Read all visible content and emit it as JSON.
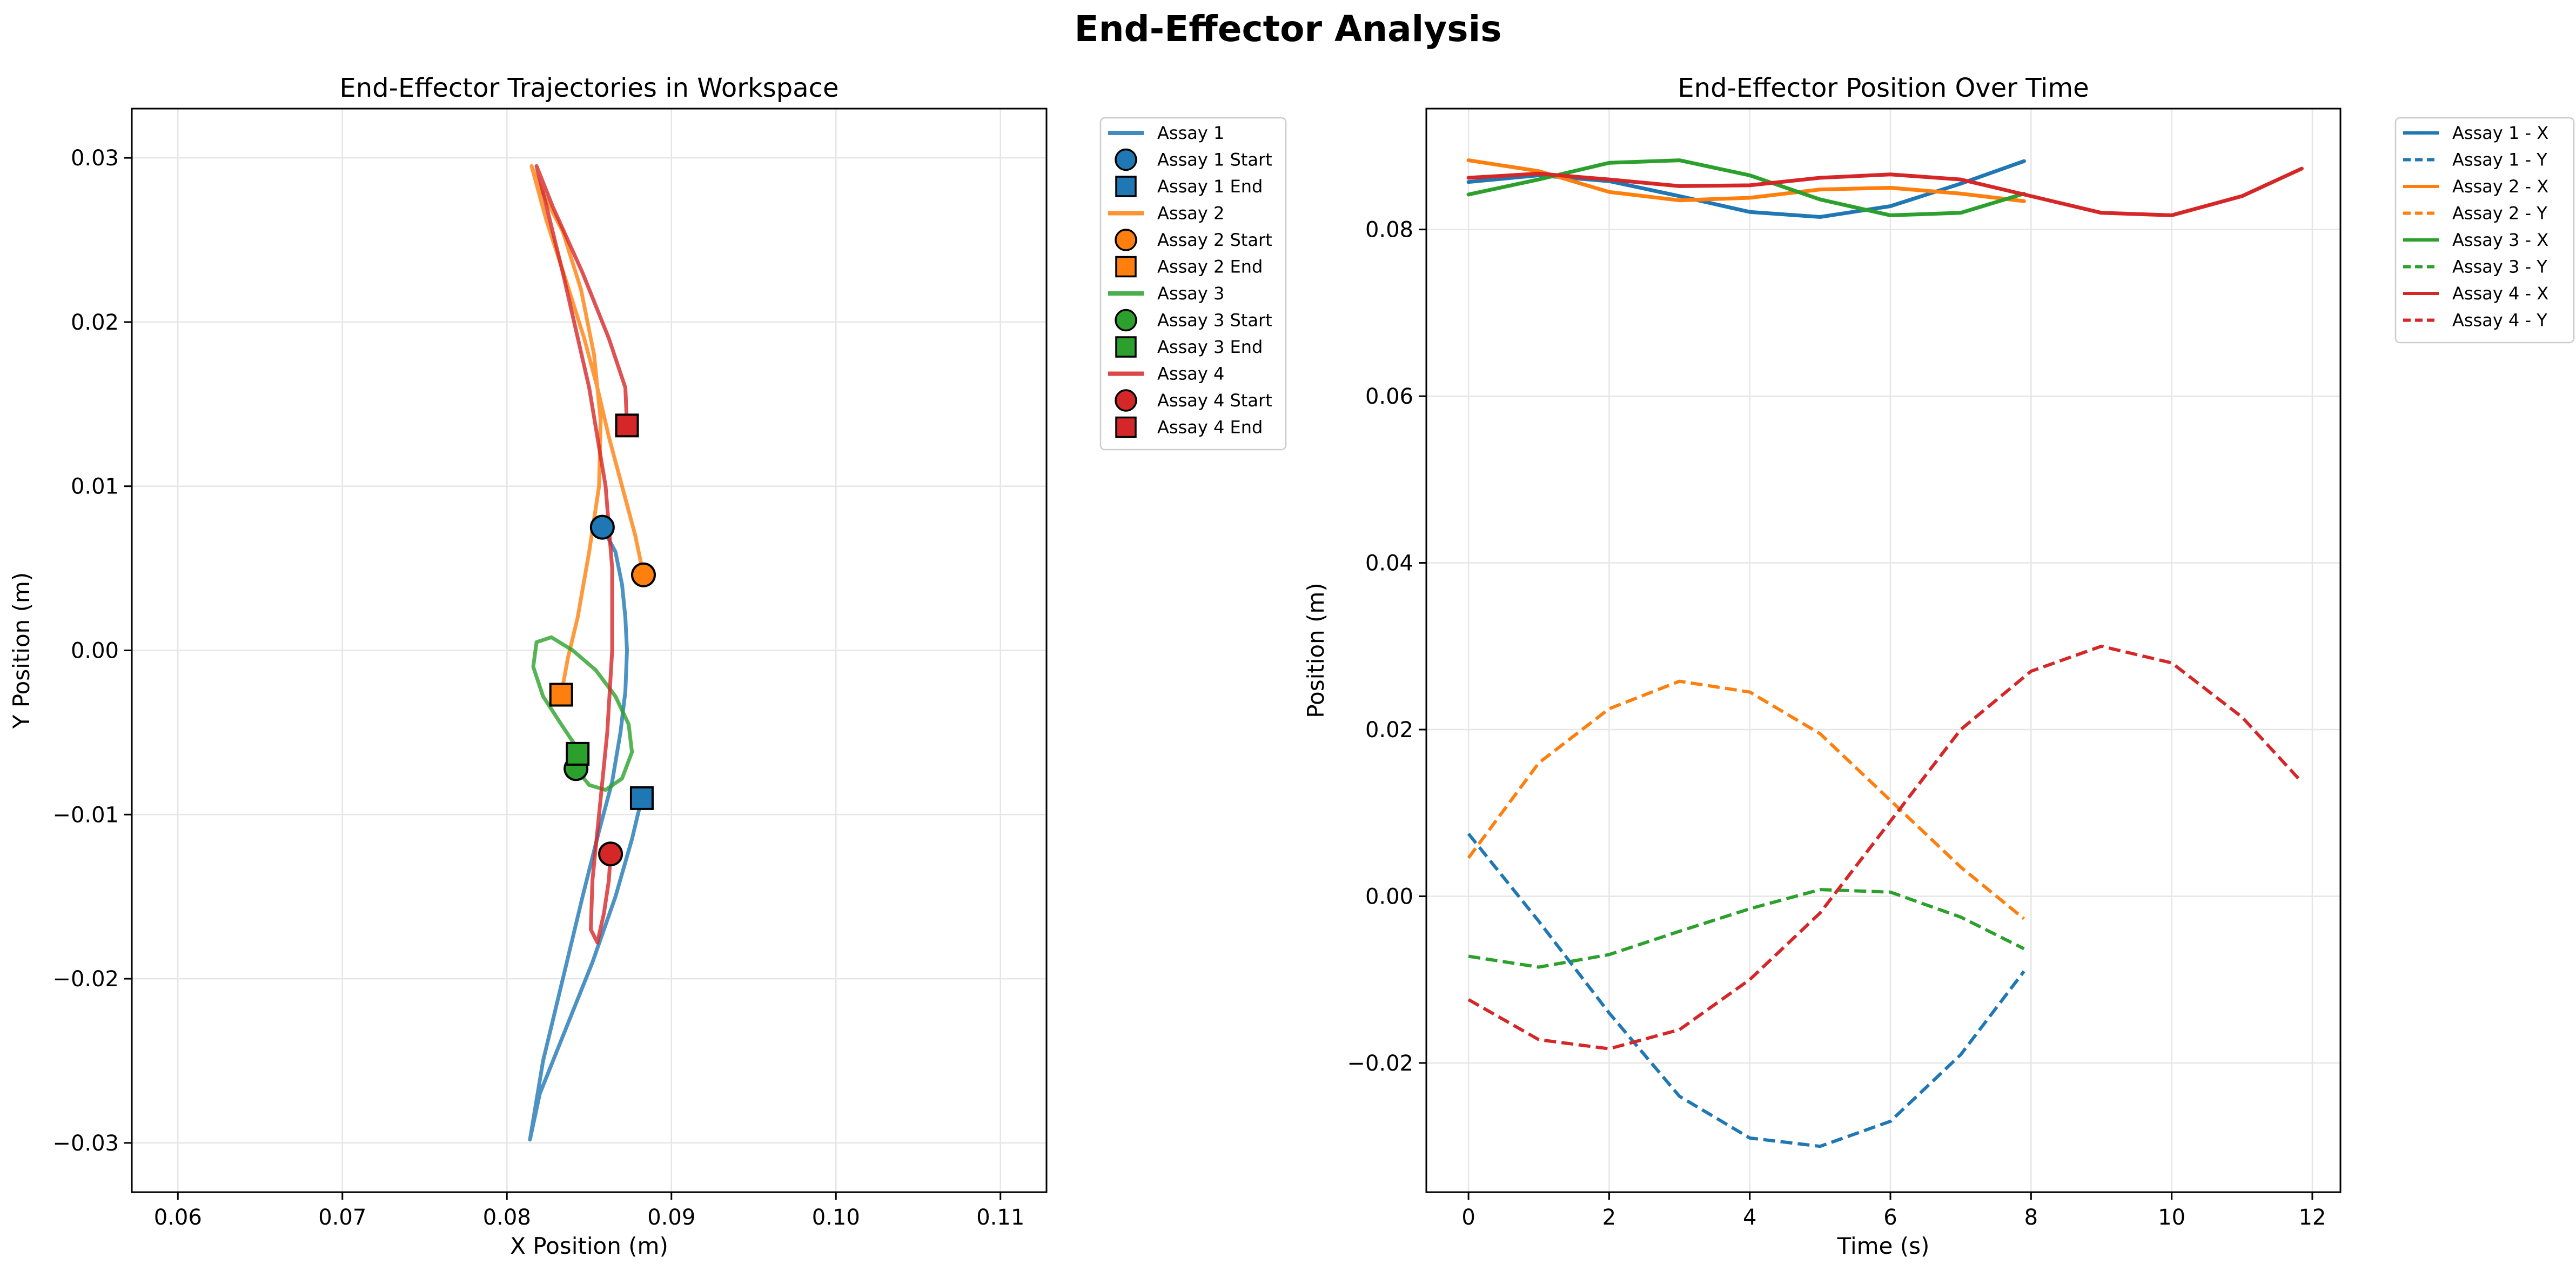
{
  "figure_title": "End-Effector Analysis",
  "chart_data": [
    {
      "type": "line",
      "title": "End-Effector Trajectories in Workspace",
      "xlabel": "X Position (m)",
      "ylabel": "Y Position (m)",
      "xlim": [
        0.0572,
        0.1128
      ],
      "ylim": [
        -0.033,
        0.033
      ],
      "xticks": [
        0.06,
        0.07,
        0.08,
        0.09,
        0.1,
        0.11
      ],
      "xtick_labels": [
        "0.06",
        "0.07",
        "0.08",
        "0.09",
        "0.10",
        "0.11"
      ],
      "yticks": [
        -0.03,
        -0.02,
        -0.01,
        0.0,
        0.01,
        0.02,
        0.03
      ],
      "ytick_labels": [
        "−0.03",
        "−0.02",
        "−0.01",
        "0.00",
        "0.01",
        "0.02",
        "0.03"
      ],
      "grid": true,
      "legend_position": "outside upper right",
      "series": [
        {
          "name": "Assay 1",
          "color": "#1f77b4",
          "start_label": "Assay 1 Start",
          "end_label": "Assay 1 End",
          "x": [
            0.0858,
            0.0866,
            0.087,
            0.0872,
            0.0873,
            0.0872,
            0.0869,
            0.0864,
            0.0856,
            0.0846,
            0.0834,
            0.0822,
            0.0814,
            0.082,
            0.0836,
            0.0852,
            0.0866,
            0.0876,
            0.0882
          ],
          "y": [
            0.0075,
            0.006,
            0.004,
            0.002,
            0.0,
            -0.0025,
            -0.005,
            -0.008,
            -0.011,
            -0.015,
            -0.02,
            -0.025,
            -0.0298,
            -0.027,
            -0.023,
            -0.019,
            -0.015,
            -0.0115,
            -0.009
          ]
        },
        {
          "name": "Assay 2",
          "color": "#ff7f0e",
          "start_label": "Assay 2 Start",
          "end_label": "Assay 2 End",
          "x": [
            0.0883,
            0.0878,
            0.087,
            0.0862,
            0.0855,
            0.0847,
            0.0836,
            0.0824,
            0.0815,
            0.0821,
            0.0834,
            0.0845,
            0.0853,
            0.0857,
            0.0856,
            0.085,
            0.0843,
            0.0837,
            0.0833
          ],
          "y": [
            0.0046,
            0.007,
            0.01,
            0.013,
            0.016,
            0.019,
            0.0225,
            0.0262,
            0.0295,
            0.028,
            0.0255,
            0.022,
            0.018,
            0.014,
            0.01,
            0.006,
            0.002,
            -0.0005,
            -0.0027
          ]
        },
        {
          "name": "Assay 3",
          "color": "#2ca02c",
          "start_label": "Assay 3 Start",
          "end_label": "Assay 3 End",
          "x": [
            0.0842,
            0.085,
            0.086,
            0.087,
            0.0876,
            0.0874,
            0.0866,
            0.0854,
            0.084,
            0.0827,
            0.0818,
            0.0816,
            0.0822,
            0.0833,
            0.0841,
            0.0843
          ],
          "y": [
            -0.0072,
            -0.0082,
            -0.0085,
            -0.0078,
            -0.0062,
            -0.0045,
            -0.0028,
            -0.0012,
            0.0,
            0.0008,
            0.0005,
            -0.001,
            -0.0028,
            -0.0045,
            -0.0057,
            -0.0063
          ]
        },
        {
          "name": "Assay 4",
          "color": "#d62728",
          "start_label": "Assay 4 Start",
          "end_label": "Assay 4 End",
          "x": [
            0.0863,
            0.0862,
            0.0859,
            0.0855,
            0.0851,
            0.0852,
            0.0856,
            0.0861,
            0.0864,
            0.0864,
            0.086,
            0.085,
            0.0834,
            0.0818,
            0.0828,
            0.0846,
            0.0862,
            0.0872,
            0.0873
          ],
          "y": [
            -0.0124,
            -0.014,
            -0.016,
            -0.0178,
            -0.017,
            -0.014,
            -0.01,
            -0.005,
            0.0,
            0.005,
            0.01,
            0.016,
            0.023,
            0.0295,
            0.027,
            0.023,
            0.019,
            0.016,
            0.0137
          ]
        }
      ]
    },
    {
      "type": "line",
      "title": "End-Effector Position Over Time",
      "xlabel": "Time (s)",
      "ylabel": "Position (m)",
      "xlim": [
        -0.6,
        12.4
      ],
      "ylim": [
        -0.0355,
        0.0945
      ],
      "xticks": [
        0,
        2,
        4,
        6,
        8,
        10,
        12
      ],
      "xtick_labels": [
        "0",
        "2",
        "4",
        "6",
        "8",
        "10",
        "12"
      ],
      "yticks": [
        -0.02,
        0.0,
        0.02,
        0.04,
        0.06,
        0.08
      ],
      "ytick_labels": [
        "−0.02",
        "0.00",
        "0.02",
        "0.04",
        "0.06",
        "0.08"
      ],
      "grid": true,
      "legend_position": "outside upper right",
      "series": [
        {
          "name": "Assay 1 - X",
          "color": "#1f77b4",
          "style": "solid",
          "x": [
            0,
            1,
            2,
            3,
            4,
            5,
            6,
            7,
            7.9
          ],
          "y": [
            0.0857,
            0.0865,
            0.0858,
            0.084,
            0.0821,
            0.0815,
            0.0828,
            0.0855,
            0.0882
          ]
        },
        {
          "name": "Assay 1 - Y",
          "color": "#1f77b4",
          "style": "dashed",
          "x": [
            0,
            1,
            2,
            3,
            4,
            5,
            6,
            7,
            7.9
          ],
          "y": [
            0.0075,
            -0.003,
            -0.014,
            -0.024,
            -0.029,
            -0.03,
            -0.027,
            -0.019,
            -0.009
          ]
        },
        {
          "name": "Assay 2 - X",
          "color": "#ff7f0e",
          "style": "solid",
          "x": [
            0,
            1,
            2,
            3,
            4,
            5,
            6,
            7,
            7.9
          ],
          "y": [
            0.0883,
            0.087,
            0.0845,
            0.0835,
            0.0838,
            0.0848,
            0.085,
            0.0843,
            0.0834
          ]
        },
        {
          "name": "Assay 2 - Y",
          "color": "#ff7f0e",
          "style": "dashed",
          "x": [
            0,
            1,
            2,
            3,
            4,
            5,
            6,
            7,
            7.9
          ],
          "y": [
            0.0046,
            0.016,
            0.0225,
            0.0258,
            0.0245,
            0.0195,
            0.0115,
            0.0035,
            -0.0027
          ]
        },
        {
          "name": "Assay 3 - X",
          "color": "#2ca02c",
          "style": "solid",
          "x": [
            0,
            1,
            2,
            3,
            4,
            5,
            6,
            7,
            7.9
          ],
          "y": [
            0.0842,
            0.086,
            0.088,
            0.0883,
            0.0865,
            0.0836,
            0.0817,
            0.082,
            0.0843
          ]
        },
        {
          "name": "Assay 3 - Y",
          "color": "#2ca02c",
          "style": "dashed",
          "x": [
            0,
            1,
            2,
            3,
            4,
            5,
            6,
            7,
            7.9
          ],
          "y": [
            -0.0072,
            -0.0085,
            -0.007,
            -0.0042,
            -0.0015,
            0.0008,
            0.0005,
            -0.0025,
            -0.0063
          ]
        },
        {
          "name": "Assay 4 - X",
          "color": "#d62728",
          "style": "solid",
          "x": [
            0,
            1,
            2,
            3,
            4,
            5,
            6,
            7,
            8,
            9,
            10,
            11,
            11.85
          ],
          "y": [
            0.0862,
            0.0867,
            0.086,
            0.0852,
            0.0853,
            0.0862,
            0.0866,
            0.086,
            0.084,
            0.082,
            0.0817,
            0.084,
            0.0873
          ]
        },
        {
          "name": "Assay 4 - Y",
          "color": "#d62728",
          "style": "dashed",
          "x": [
            0,
            1,
            2,
            3,
            4,
            5,
            6,
            7,
            8,
            9,
            10,
            11,
            11.85
          ],
          "y": [
            -0.0124,
            -0.0172,
            -0.0183,
            -0.016,
            -0.01,
            -0.002,
            0.009,
            0.02,
            0.027,
            0.03,
            0.028,
            0.0215,
            0.0137
          ]
        }
      ]
    }
  ]
}
